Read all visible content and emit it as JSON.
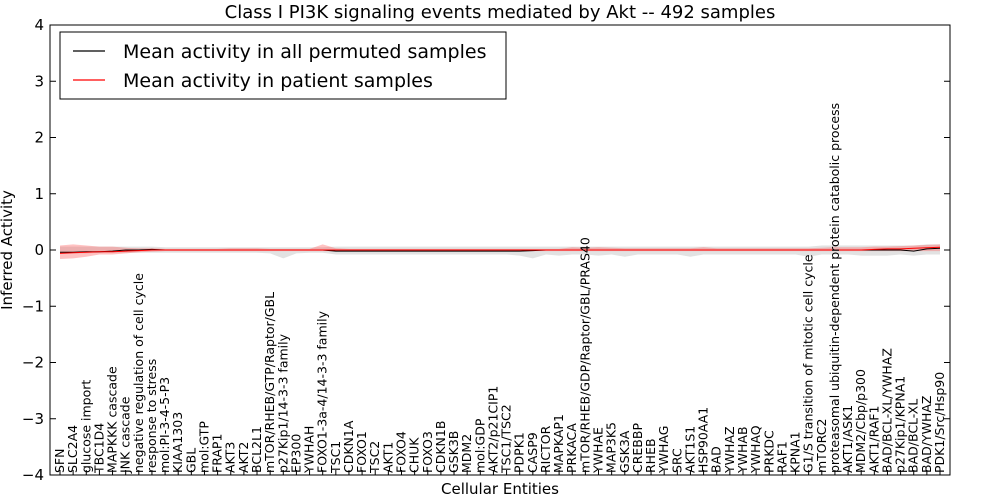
{
  "chart_data": {
    "type": "line",
    "title": "Class I PI3K signaling events mediated by Akt -- 492 samples",
    "xlabel": "Cellular Entities",
    "ylabel": "Inferred Activity",
    "ylim": [
      -4,
      4
    ],
    "yticks": [
      -4,
      -3,
      -2,
      -1,
      0,
      1,
      2,
      3,
      4
    ],
    "grid": false,
    "legend_position": "top-left",
    "categories": [
      "SFN",
      "SLC2A4",
      "glucose import",
      "TBC1D4",
      "MAPKKK cascade",
      "JNK cascade",
      "negative regulation of cell cycle",
      "response to stress",
      "mol:PI-3-4-5-P3",
      "KIAA1303",
      "GBL",
      "mol:GTP",
      "FRAP1",
      "AKT3",
      "AKT2",
      "BCL2L1",
      "mTOR/RHEB/GTP/Raptor/GBL",
      "p27Kip1/14-3-3 family",
      "EP300",
      "YWHAH",
      "FOXO1-3a-4/14-3-3 family",
      "TSC1",
      "CDKN1A",
      "FOXO1",
      "TSC2",
      "AKT1",
      "FOXO4",
      "CHUK",
      "FOXO3",
      "CDKN1B",
      "GSK3B",
      "MDM2",
      "mol:GDP",
      "AKT2/p21CIP1",
      "TSC1/TSC2",
      "PDPK1",
      "CASP9",
      "RICTOR",
      "MAPKAP1",
      "PRKACA",
      "mTOR/RHEB/GDP/Raptor/GBL/PRAS40",
      "YWHAE",
      "MAP3K5",
      "GSK3A",
      "CREBBP",
      "RHEB",
      "YWHAG",
      "SRC",
      "AKT1S1",
      "HSP90AA1",
      "BAD",
      "YWHAZ",
      "YWHAB",
      "YWHAQ",
      "PRKDC",
      "RAF1",
      "KPNA1",
      "G1/S transition of mitotic cell cycle",
      "mTORC2",
      "proteasomal ubiquitin-dependent protein catabolic process",
      "AKT1/ASK1",
      "MDM2/Cbp/p300",
      "AKT1/RAF1",
      "BAD/BCL-XL/YWHAZ",
      "p27Kip1/KPNA1",
      "BAD/BCL-XL",
      "BAD/YWHAZ",
      "PDK1/Src/Hsp90"
    ],
    "series": [
      {
        "name": "Mean activity in all permuted samples",
        "color": "#000000",
        "values": [
          -0.04,
          -0.04,
          -0.03,
          -0.03,
          -0.02,
          0.0,
          0.0,
          0.01,
          0.0,
          0.0,
          0.0,
          0.0,
          0.0,
          0.0,
          0.0,
          0.0,
          0.0,
          0.0,
          0.0,
          0.0,
          0.0,
          -0.02,
          -0.02,
          -0.02,
          -0.02,
          -0.02,
          -0.02,
          -0.02,
          -0.02,
          -0.02,
          -0.02,
          -0.02,
          -0.02,
          -0.02,
          -0.02,
          -0.02,
          -0.01,
          0.0,
          0.0,
          0.0,
          0.0,
          0.0,
          0.0,
          0.0,
          0.0,
          0.0,
          0.0,
          0.0,
          0.0,
          0.0,
          0.0,
          0.0,
          0.0,
          0.0,
          0.0,
          0.0,
          0.0,
          0.0,
          0.0,
          0.0,
          0.0,
          0.0,
          0.0,
          0.0,
          0.0,
          -0.02,
          0.02,
          0.03
        ],
        "band_low": [
          -0.06,
          -0.06,
          -0.06,
          -0.05,
          -0.05,
          -0.05,
          -0.05,
          -0.05,
          -0.05,
          -0.05,
          -0.05,
          -0.05,
          -0.05,
          -0.05,
          -0.05,
          -0.05,
          -0.06,
          -0.15,
          -0.06,
          -0.05,
          -0.05,
          -0.08,
          -0.08,
          -0.08,
          -0.08,
          -0.08,
          -0.08,
          -0.08,
          -0.08,
          -0.08,
          -0.08,
          -0.08,
          -0.08,
          -0.08,
          -0.08,
          -0.1,
          -0.15,
          -0.08,
          -0.1,
          -0.08,
          -0.08,
          -0.1,
          -0.08,
          -0.12,
          -0.08,
          -0.08,
          -0.08,
          -0.08,
          -0.12,
          -0.08,
          -0.08,
          -0.08,
          -0.08,
          -0.08,
          -0.08,
          -0.08,
          -0.08,
          -0.12,
          -0.08,
          -0.08,
          -0.08,
          -0.1,
          -0.1,
          -0.1,
          -0.08,
          -0.1,
          -0.08,
          -0.08
        ],
        "band_high": [
          0.06,
          0.06,
          0.06,
          0.06,
          0.06,
          0.06,
          0.06,
          0.06,
          0.05,
          0.05,
          0.05,
          0.05,
          0.05,
          0.05,
          0.05,
          0.05,
          0.05,
          0.05,
          0.05,
          0.05,
          0.05,
          0.06,
          0.06,
          0.06,
          0.06,
          0.06,
          0.06,
          0.06,
          0.06,
          0.06,
          0.06,
          0.06,
          0.06,
          0.06,
          0.06,
          0.06,
          0.06,
          0.06,
          0.06,
          0.06,
          0.06,
          0.06,
          0.06,
          0.06,
          0.06,
          0.06,
          0.06,
          0.06,
          0.06,
          0.06,
          0.06,
          0.06,
          0.06,
          0.06,
          0.06,
          0.06,
          0.06,
          0.06,
          0.08,
          0.08,
          0.08,
          0.08,
          0.08,
          0.08,
          0.08,
          0.08,
          0.1,
          0.1
        ]
      },
      {
        "name": "Mean activity in patient samples",
        "color": "#ff0000",
        "values": [
          -0.06,
          -0.05,
          -0.04,
          -0.03,
          -0.03,
          -0.02,
          -0.01,
          0.0,
          0.0,
          0.0,
          0.0,
          0.0,
          0.0,
          0.0,
          0.0,
          0.0,
          0.0,
          0.0,
          0.0,
          0.0,
          0.0,
          0.0,
          0.0,
          0.0,
          0.0,
          0.0,
          0.0,
          0.0,
          0.0,
          0.0,
          0.0,
          0.0,
          0.0,
          0.0,
          0.0,
          0.0,
          0.0,
          0.0,
          0.0,
          0.0,
          0.0,
          0.0,
          0.0,
          0.0,
          0.0,
          0.0,
          0.0,
          0.0,
          0.0,
          0.0,
          0.0,
          0.0,
          0.0,
          0.0,
          0.0,
          0.0,
          0.0,
          0.0,
          0.0,
          0.0,
          0.0,
          0.0,
          0.01,
          0.02,
          0.02,
          0.03,
          0.04,
          0.05
        ],
        "band_low": [
          -0.16,
          -0.15,
          -0.12,
          -0.08,
          -0.08,
          -0.06,
          -0.04,
          -0.03,
          -0.02,
          -0.02,
          -0.02,
          -0.02,
          -0.02,
          -0.02,
          -0.02,
          -0.02,
          -0.02,
          -0.02,
          -0.02,
          -0.02,
          -0.02,
          -0.02,
          -0.02,
          -0.02,
          -0.02,
          -0.02,
          -0.02,
          -0.02,
          -0.02,
          -0.02,
          -0.02,
          -0.02,
          -0.02,
          -0.02,
          -0.02,
          -0.02,
          -0.02,
          -0.02,
          -0.02,
          -0.02,
          -0.02,
          -0.02,
          -0.02,
          -0.02,
          -0.02,
          -0.02,
          -0.02,
          -0.02,
          -0.02,
          -0.02,
          -0.02,
          -0.02,
          -0.02,
          -0.02,
          -0.02,
          -0.02,
          -0.02,
          -0.02,
          -0.02,
          -0.02,
          -0.02,
          -0.02,
          -0.02,
          -0.02,
          -0.02,
          -0.02,
          -0.02,
          -0.02
        ],
        "band_high": [
          0.08,
          0.1,
          0.08,
          0.06,
          0.06,
          0.04,
          0.03,
          0.03,
          0.02,
          0.02,
          0.02,
          0.02,
          0.02,
          0.03,
          0.03,
          0.03,
          0.02,
          0.02,
          0.02,
          0.02,
          0.1,
          0.03,
          0.02,
          0.02,
          0.02,
          0.02,
          0.02,
          0.02,
          0.02,
          0.02,
          0.02,
          0.02,
          0.02,
          0.02,
          0.02,
          0.02,
          0.02,
          0.02,
          0.02,
          0.05,
          0.04,
          0.05,
          0.04,
          0.03,
          0.03,
          0.03,
          0.03,
          0.03,
          0.03,
          0.05,
          0.03,
          0.03,
          0.03,
          0.03,
          0.03,
          0.03,
          0.03,
          0.03,
          0.04,
          0.05,
          0.05,
          0.05,
          0.06,
          0.06,
          0.07,
          0.08,
          0.09,
          0.1
        ]
      }
    ]
  }
}
